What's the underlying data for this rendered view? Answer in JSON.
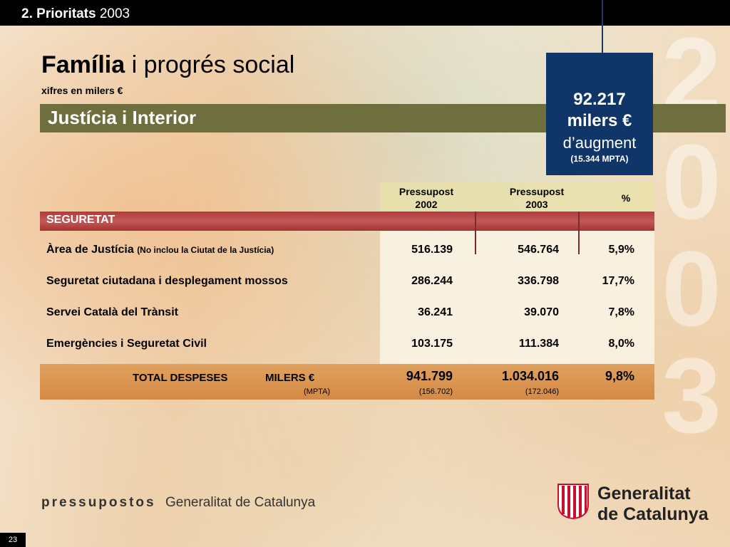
{
  "header": {
    "section_number": "2.",
    "section_name": "Prioritats",
    "year": "2003"
  },
  "background_year_digits": [
    "2",
    "0",
    "0",
    "3"
  ],
  "title": {
    "bold": "Família",
    "rest": "i progrés social"
  },
  "subtitle": "xifres en milers €",
  "section_title": "Justícia i Interior",
  "highlight": {
    "amount": "92.217",
    "unit": "milers €",
    "text": "d’augment",
    "note": "(15.344 MPTA)"
  },
  "table": {
    "col_headers": [
      {
        "line1": "Pressupost",
        "line2": "2002"
      },
      {
        "line1": "Pressupost",
        "line2": "2003"
      },
      {
        "line1": "%",
        "line2": ""
      }
    ],
    "group_label": "SEGURETAT",
    "rows": [
      {
        "label": "Àrea de Justícia",
        "note": "(No inclou la Ciutat de la Justícia)",
        "v2002": "516.139",
        "v2003": "546.764",
        "pct": "5,9%"
      },
      {
        "label": "Seguretat ciutadana i desplegament mossos",
        "note": "",
        "v2002": "286.244",
        "v2003": "336.798",
        "pct": "17,7%"
      },
      {
        "label": "Servei Català del Trànsit",
        "note": "",
        "v2002": "36.241",
        "v2003": "39.070",
        "pct": "7,8%"
      },
      {
        "label": "Emergències i Seguretat Civil",
        "note": "",
        "v2002": "103.175",
        "v2003": "111.384",
        "pct": "8,0%"
      }
    ],
    "total": {
      "label": "TOTAL DESPESES",
      "unit": "MILERS €",
      "sub_unit": "(MPTA)",
      "v2002": "941.799",
      "v2003": "1.034.016",
      "pct": "9,8%",
      "v2002_mpta": "(156.702)",
      "v2003_mpta": "(172.046)"
    }
  },
  "footer": {
    "brand": "pressupostos",
    "org": "Generalitat de Catalunya",
    "logo_line1": "Generalitat",
    "logo_line2": "de Catalunya",
    "logo_icon": "senyera-logo-icon"
  },
  "page_number": "23",
  "colors": {
    "title_bar": "#000000",
    "section_band": "#6e6e3e",
    "highlight_box": "#0f3569",
    "group_band": "#b43a3a",
    "total_band": "#d48a46"
  }
}
